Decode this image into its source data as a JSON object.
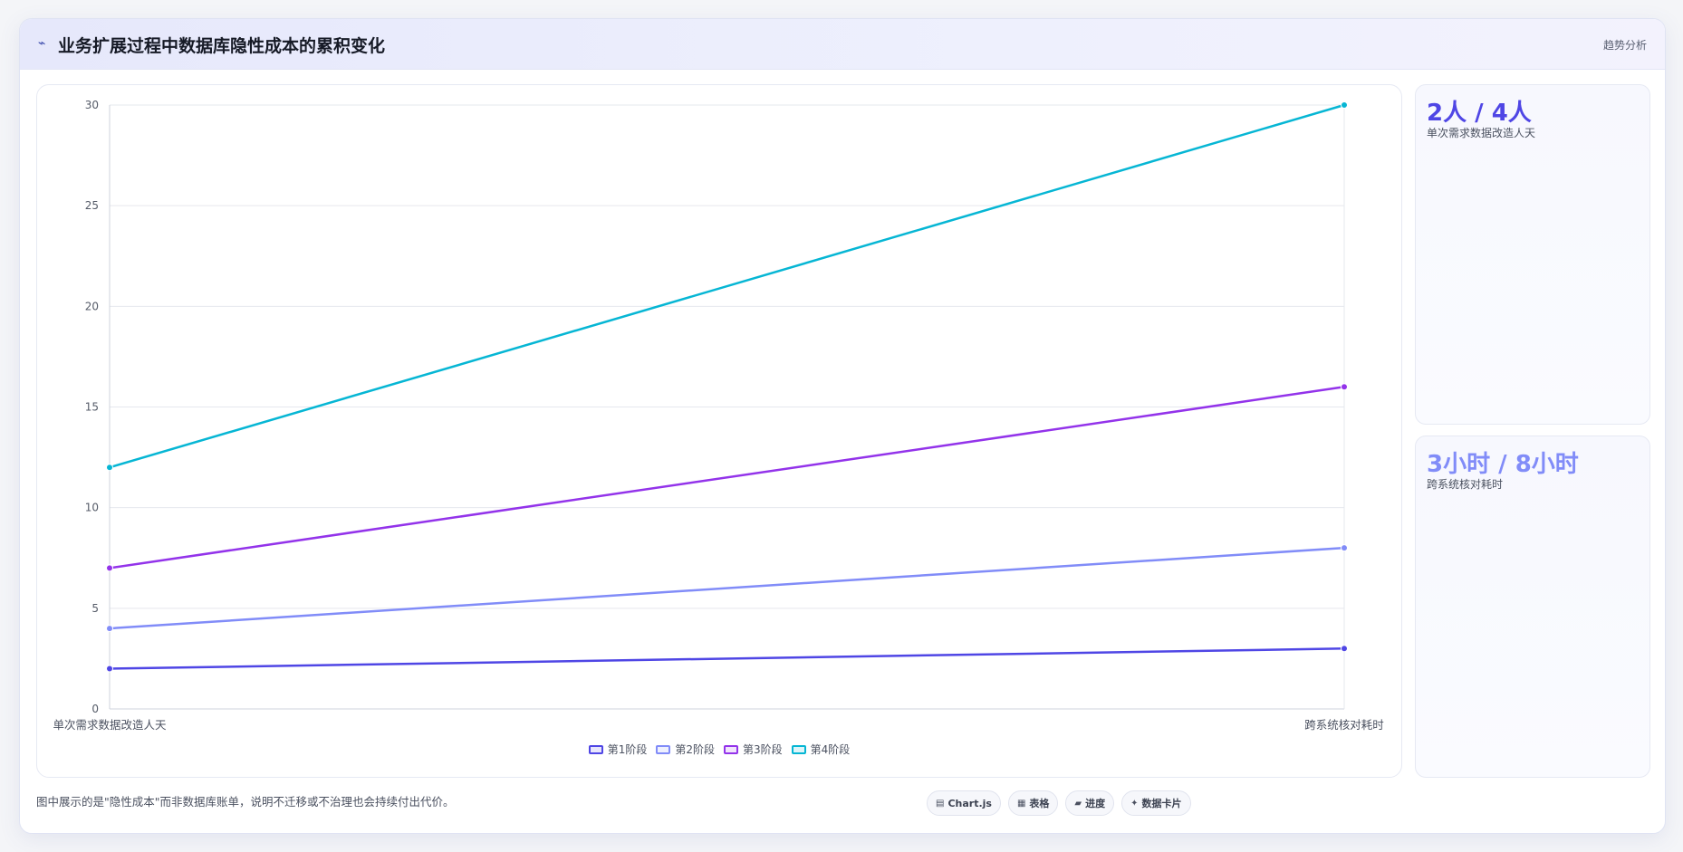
{
  "header": {
    "icon": "trend-line-icon",
    "title": "业务扩展过程中数据库隐性成本的累积变化",
    "tag": "趋势分析"
  },
  "chart_data": {
    "type": "line",
    "categories": [
      "单次需求数据改造人天",
      "跨系统核对耗时"
    ],
    "series": [
      {
        "name": "第1阶段",
        "values": [
          2,
          3
        ],
        "color": "#4f46e5"
      },
      {
        "name": "第2阶段",
        "values": [
          4,
          8
        ],
        "color": "#818cf8"
      },
      {
        "name": "第3阶段",
        "values": [
          7,
          16
        ],
        "color": "#9333ea"
      },
      {
        "name": "第4阶段",
        "values": [
          12,
          30
        ],
        "color": "#06b6d4"
      }
    ],
    "title": "",
    "xlabel": "",
    "ylabel": "",
    "ylim": [
      0,
      30
    ],
    "yticks": [
      0,
      5,
      10,
      15,
      20,
      25,
      30
    ],
    "grid": true,
    "legend": "bottom"
  },
  "stats": [
    {
      "value": "2人 / 4人",
      "label": "单次需求数据改造人天",
      "color": "#4f46e5"
    },
    {
      "value": "3小时 / 8小时",
      "label": "跨系统核对耗时",
      "color": "#818cf8"
    }
  ],
  "footnote": "图中展示的是\"隐性成本\"而非数据库账单，说明不迁移或不治理也会持续付出代价。",
  "badges": [
    {
      "icon": "▤",
      "icon_name": "chart-icon",
      "label": "Chart.js"
    },
    {
      "icon": "▦",
      "icon_name": "table-icon",
      "label": "表格"
    },
    {
      "icon": "▰",
      "icon_name": "progress-icon",
      "label": "进度"
    },
    {
      "icon": "✦",
      "icon_name": "sparkle-icon",
      "label": "数据卡片"
    }
  ]
}
